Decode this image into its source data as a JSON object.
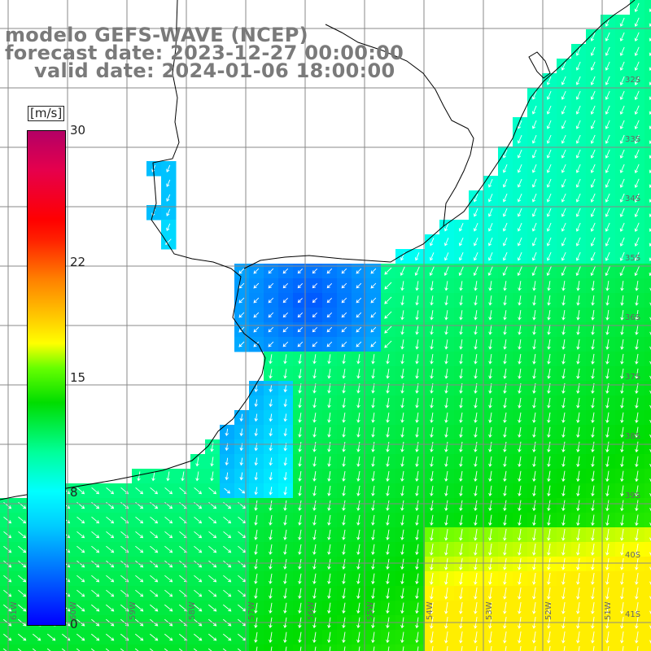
{
  "title": {
    "line1": "modelo GEFS-WAVE (NCEP)",
    "line2": "forecast date: 2023-12-27 00:00:00",
    "line3": "valid date: 2024-01-06 18:00:00"
  },
  "colorbar": {
    "units": "[m/s]",
    "ticks": [
      {
        "value": 30,
        "label": "30"
      },
      {
        "value": 22,
        "label": "22"
      },
      {
        "value": 15,
        "label": "15"
      },
      {
        "value": 8,
        "label": "8"
      },
      {
        "value": 0,
        "label": "0"
      }
    ],
    "min": 0,
    "max": 30
  },
  "lon_labels": [
    "61W",
    "60W",
    "59W",
    "58W",
    "57W",
    "56W",
    "55W",
    "54W",
    "53W",
    "52W",
    "51W"
  ],
  "lat_labels": [
    "32S",
    "33S",
    "34S",
    "35S",
    "36S",
    "37S",
    "38S",
    "39S",
    "40S",
    "41S"
  ],
  "colors": {
    "land": "#ffffff",
    "coast": "#000000",
    "grid": "#888888",
    "title": "#7a7a7a",
    "arrow": "#ffffff"
  },
  "field": {
    "variable": "wind speed",
    "arrow_direction": "southward"
  }
}
